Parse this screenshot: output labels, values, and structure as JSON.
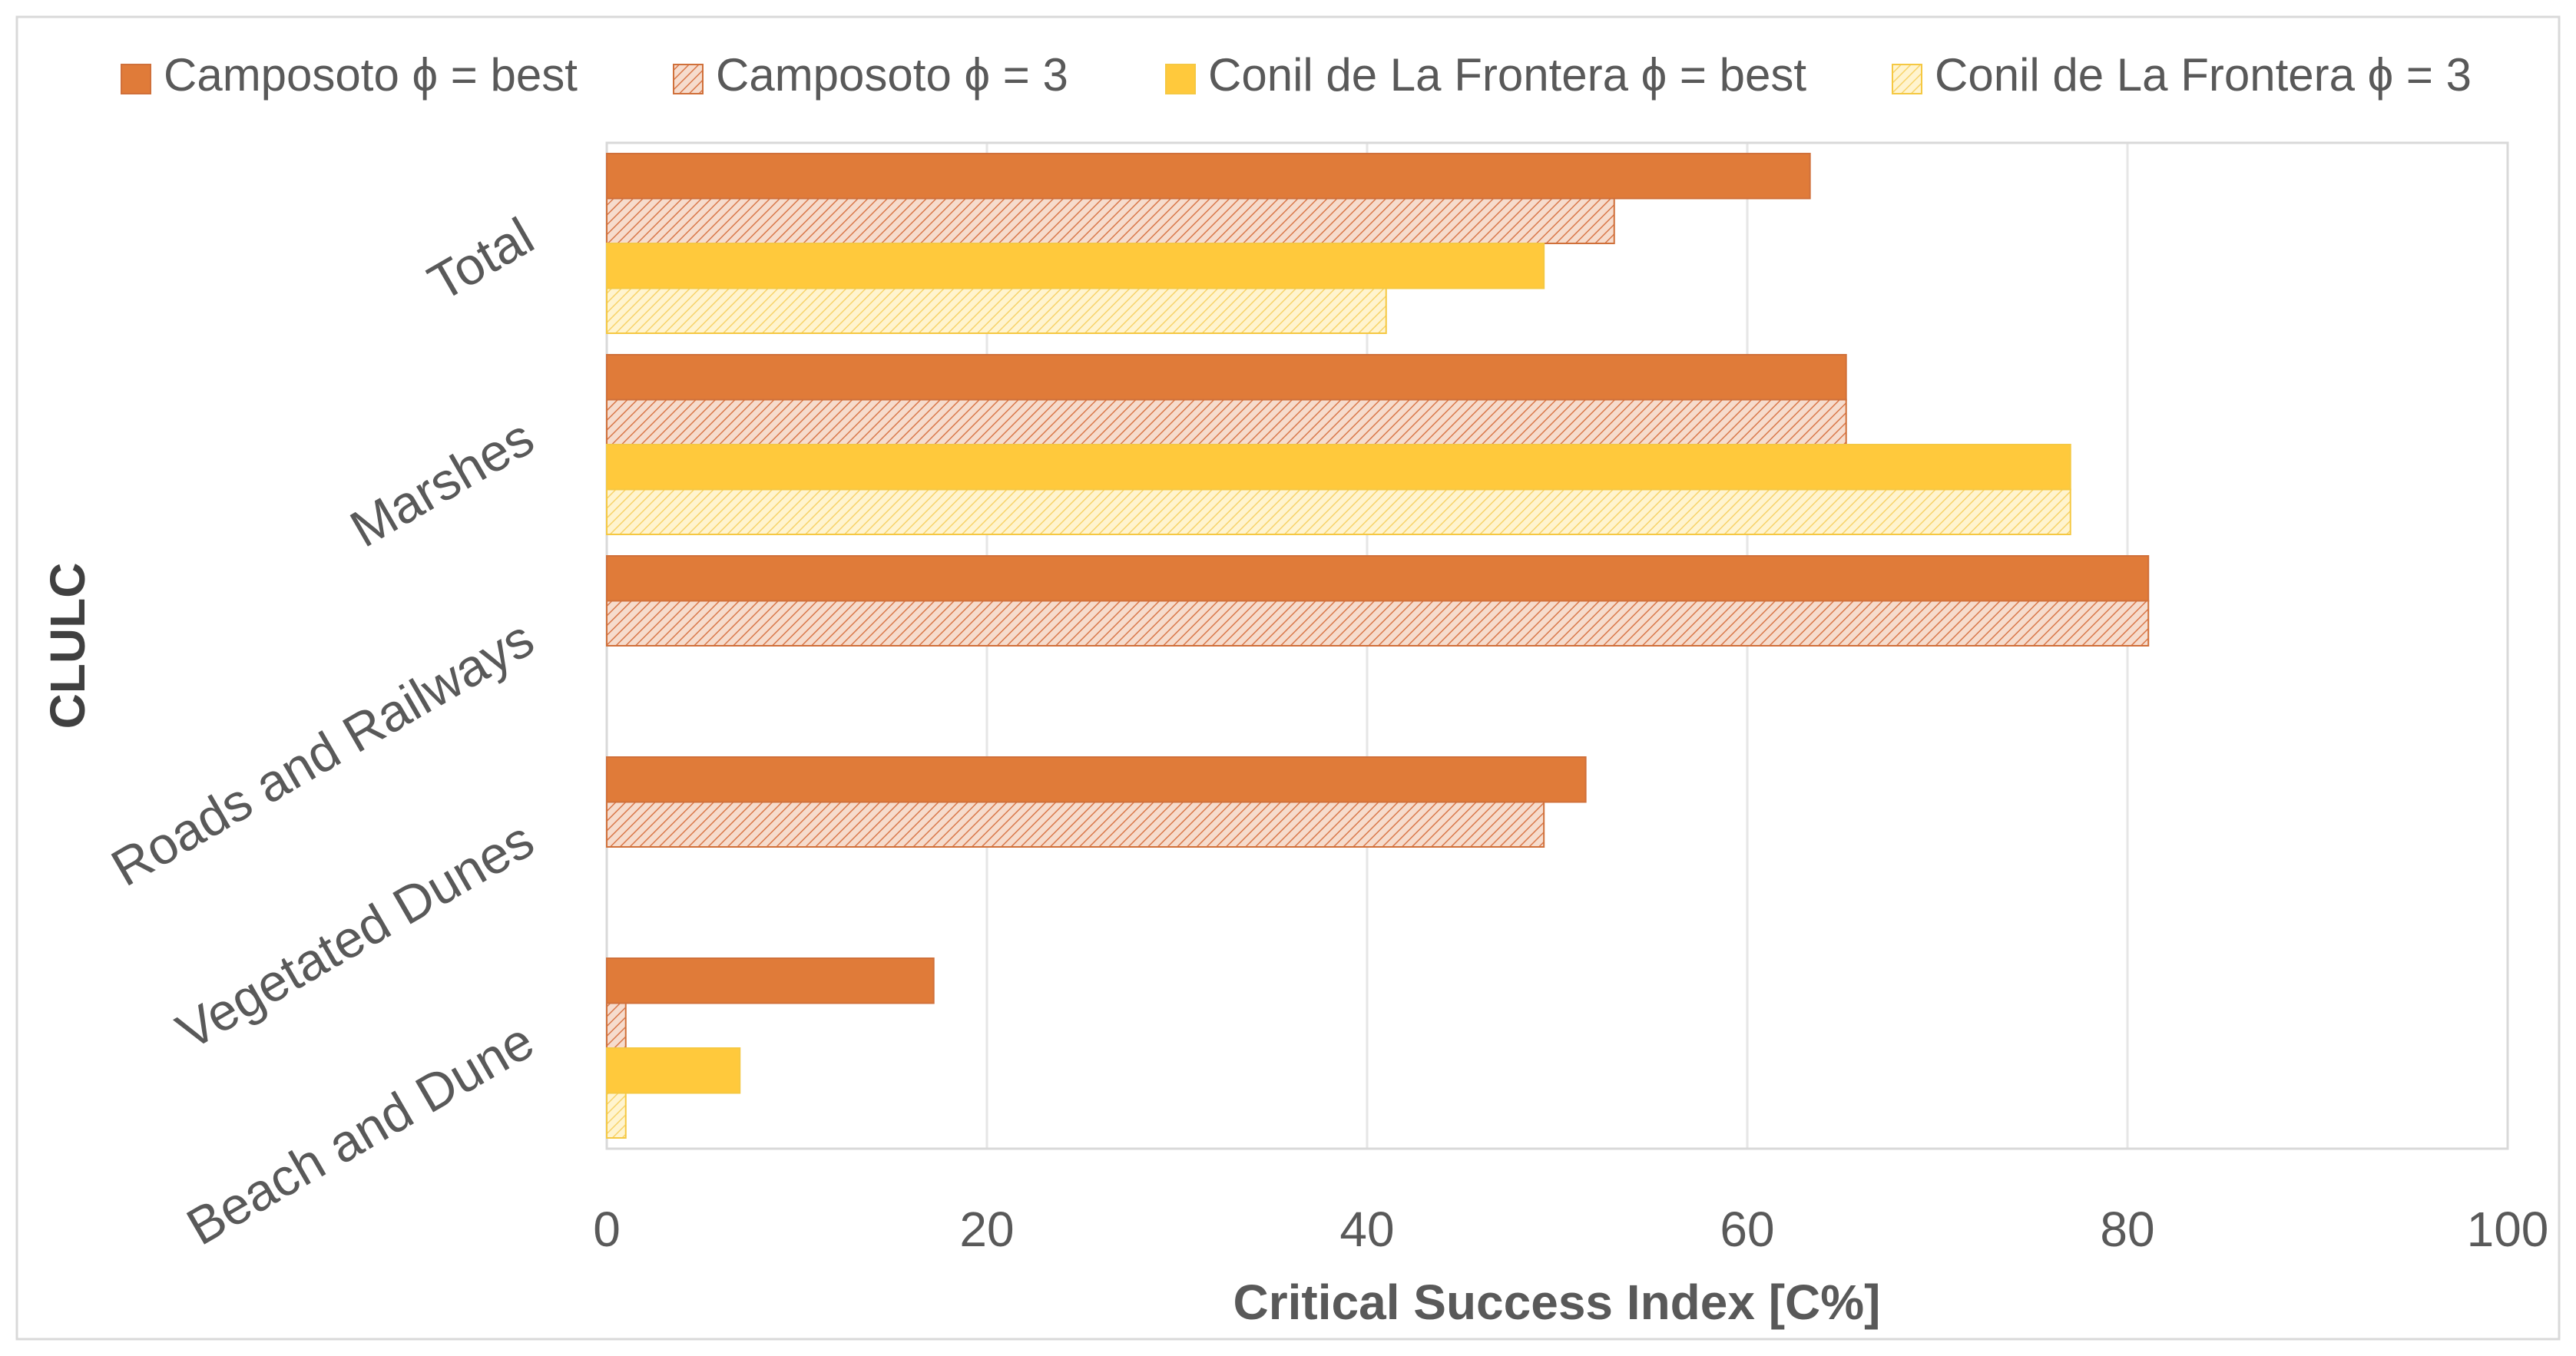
{
  "chart_data": {
    "type": "bar",
    "orientation": "horizontal",
    "title": "",
    "xlabel": "Critical Success Index [C%]",
    "ylabel": "CLULC",
    "xlim": [
      0,
      100
    ],
    "xticks": [
      0,
      20,
      40,
      60,
      80,
      100
    ],
    "grid": "vertical",
    "legend_position": "top",
    "categories": [
      "Total",
      "Marshes",
      "Roads and Railways",
      "Vegetated Dunes",
      "Beach and Dune"
    ],
    "series": [
      {
        "name": "Camposoto ϕ = best",
        "color": "#e07b39",
        "pattern": "solid",
        "values": [
          63.3,
          65.2,
          81.1,
          51.5,
          17.2
        ]
      },
      {
        "name": "Camposoto ϕ = 3",
        "color": "#e9b299",
        "pattern": "hatch",
        "values": [
          53.0,
          65.2,
          81.1,
          49.3,
          1.0
        ]
      },
      {
        "name": "Conil de La Frontera ϕ = best",
        "color": "#ffc93c",
        "pattern": "solid",
        "values": [
          49.3,
          77.0,
          null,
          null,
          7.0
        ]
      },
      {
        "name": "Conil de La Frontera ϕ = 3",
        "color": "#fde6a6",
        "pattern": "hatch",
        "values": [
          41.0,
          77.0,
          null,
          null,
          1.0
        ]
      }
    ]
  }
}
